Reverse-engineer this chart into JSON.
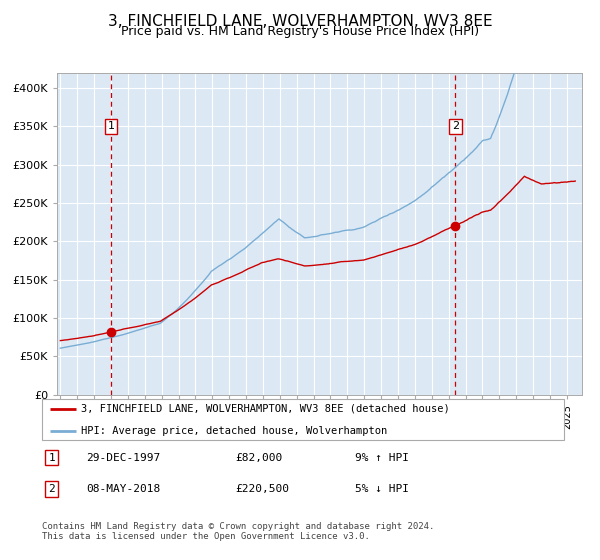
{
  "title": "3, FINCHFIELD LANE, WOLVERHAMPTON, WV3 8EE",
  "subtitle": "Price paid vs. HM Land Registry's House Price Index (HPI)",
  "title_fontsize": 11,
  "subtitle_fontsize": 9,
  "background_color": "#dce9f5",
  "grid_color": "#ffffff",
  "red_line_color": "#cc0000",
  "blue_line_color": "#7aadd4",
  "dashed_line_color": "#cc0000",
  "marker_color": "#cc0000",
  "ylim": [
    0,
    420000
  ],
  "ytick_values": [
    0,
    50000,
    100000,
    150000,
    200000,
    250000,
    300000,
    350000,
    400000
  ],
  "ytick_labels": [
    "£0",
    "£50K",
    "£100K",
    "£150K",
    "£200K",
    "£250K",
    "£300K",
    "£350K",
    "£400K"
  ],
  "sale1_year": 1998.0,
  "sale1_price": 82000,
  "sale1_label": "1",
  "sale2_year": 2018.37,
  "sale2_price": 220500,
  "sale2_label": "2",
  "legend_line1": "3, FINCHFIELD LANE, WOLVERHAMPTON, WV3 8EE (detached house)",
  "legend_line2": "HPI: Average price, detached house, Wolverhampton",
  "note1_label": "1",
  "note1_date": "29-DEC-1997",
  "note1_price": "£82,000",
  "note1_hpi": "9% ↑ HPI",
  "note2_label": "2",
  "note2_date": "08-MAY-2018",
  "note2_price": "£220,500",
  "note2_hpi": "5% ↓ HPI",
  "footer": "Contains HM Land Registry data © Crown copyright and database right 2024.\nThis data is licensed under the Open Government Licence v3.0.",
  "xlim_left": 1994.8,
  "xlim_right": 2025.9,
  "xtick_start": 1995,
  "xtick_end": 2026
}
